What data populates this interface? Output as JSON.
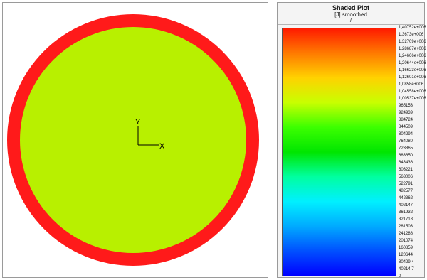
{
  "legend": {
    "title": "Shaded Plot",
    "subtitle": "[J] smoothed",
    "mark": "/",
    "ticks": [
      "1,40752e+006",
      "1,3673e+006",
      "1,32709e+006",
      "1,28687e+006",
      "1,24666e+006",
      "1,20644e+006",
      "1,16623e+006",
      "1,12601e+006",
      "1,0858e+006",
      "1,04558e+006",
      "1,00537e+006",
      "965153",
      "924939",
      "884724",
      "844509",
      "804294",
      "764080",
      "723865",
      "683650",
      "643436",
      "603221",
      "563006",
      "522791",
      "482577",
      "442362",
      "402147",
      "361932",
      "321718",
      "281503",
      "241288",
      "201074",
      "160859",
      "120644",
      "80429,4",
      "40214,7",
      "0"
    ],
    "colors": [
      "#ff1a00",
      "#ff7a00",
      "#ffd200",
      "#c8ff00",
      "#3cff00",
      "#00e600",
      "#00ffa0",
      "#00f0ff",
      "#00aaff",
      "#0050ff",
      "#0000ff"
    ]
  },
  "model": {
    "ring_color": "#ff1a1a",
    "disk_color": "#b8f000"
  },
  "axes": {
    "y_label": "Y",
    "x_label": "X"
  }
}
